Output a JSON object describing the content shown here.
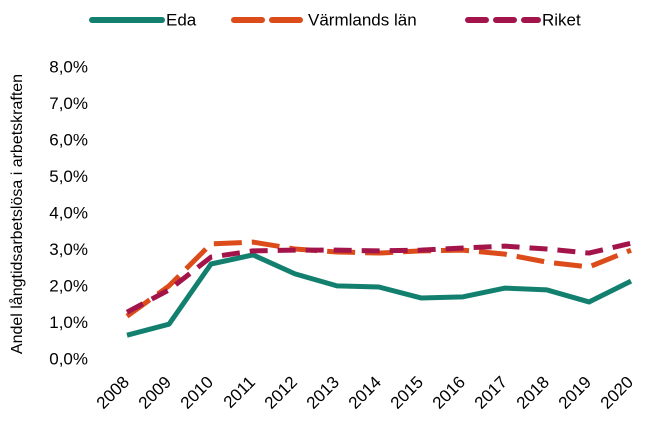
{
  "chart_data": {
    "type": "line",
    "y_label": "Andel långtidsarbetslösa i arbetskraften",
    "categories": [
      "2008",
      "2009",
      "2010",
      "2011",
      "2012",
      "2013",
      "2014",
      "2015",
      "2016",
      "2017",
      "2018",
      "2019",
      "2020"
    ],
    "series": [
      {
        "name": "Eda",
        "color": "#13806f",
        "dash": "solid",
        "values": [
          0.68,
          0.98,
          2.63,
          2.88,
          2.36,
          2.03,
          2.0,
          1.7,
          1.73,
          1.97,
          1.92,
          1.59,
          2.16
        ]
      },
      {
        "name": "Värmlands län",
        "color": "#dc4c1a",
        "dash": "long",
        "values": [
          1.2,
          2.03,
          3.18,
          3.23,
          3.04,
          2.96,
          2.93,
          2.99,
          3.01,
          2.9,
          2.68,
          2.55,
          3.01
        ]
      },
      {
        "name": "Riket",
        "color": "#a3154a",
        "dash": "medium",
        "values": [
          1.31,
          1.92,
          2.82,
          2.99,
          3.01,
          3.01,
          2.99,
          3.01,
          3.07,
          3.12,
          3.04,
          2.93,
          3.2
        ]
      }
    ],
    "ylim": [
      0,
      8
    ],
    "yticks": [
      {
        "value": 0,
        "label": "0,0%"
      },
      {
        "value": 1,
        "label": "1,0%"
      },
      {
        "value": 2,
        "label": "2,0%"
      },
      {
        "value": 3,
        "label": "3,0%"
      },
      {
        "value": 4,
        "label": "4,0%"
      },
      {
        "value": 5,
        "label": "5,0%"
      },
      {
        "value": 6,
        "label": "6,0%"
      },
      {
        "value": 7,
        "label": "7,0%"
      },
      {
        "value": 8,
        "label": "8,0%"
      }
    ],
    "legend": "top"
  }
}
